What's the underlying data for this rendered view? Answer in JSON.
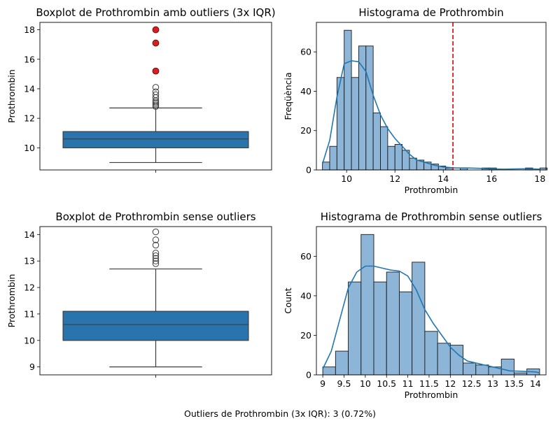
{
  "footer_text": "Outliers de Prothrombin (3x IQR): 3 (0.72%)",
  "colors": {
    "box": "#2a74ad",
    "hist_fill": "#8cb5d8",
    "kde": "#1f77b4",
    "outlier_red": "#d62020",
    "threshold_line": "#e41a1c"
  },
  "chart_data": [
    {
      "type": "boxplot",
      "title": "Boxplot de Prothrombin amb outliers (3x IQR)",
      "ylabel": "Prothrombin",
      "ylim": [
        8.5,
        18.5
      ],
      "yticks": [
        10,
        12,
        14,
        16,
        18
      ],
      "stats": {
        "whisker_low": 9.0,
        "q1": 10.0,
        "median": 10.6,
        "q3": 11.1,
        "whisker_high": 12.7
      },
      "fliers": [
        12.8,
        12.9,
        13.0,
        13.1,
        13.2,
        13.4,
        13.6,
        13.8,
        14.1
      ],
      "extreme_outliers": [
        15.2,
        17.1,
        18.0
      ]
    },
    {
      "type": "histogram",
      "title": "Histograma de Prothrombin",
      "xlabel": "Prothrombin",
      "ylabel": "Freqüència",
      "xlim": [
        8.75,
        18.25
      ],
      "ylim": [
        0,
        75
      ],
      "xticks": [
        10,
        12,
        14,
        16,
        18
      ],
      "yticks": [
        0,
        20,
        40,
        60
      ],
      "bin_start": 9.0,
      "bin_width": 0.3,
      "counts": [
        4,
        12,
        47,
        71,
        47,
        63,
        63,
        29,
        22,
        12,
        13,
        10,
        6,
        5,
        4,
        3,
        2,
        1,
        0,
        1,
        0,
        0,
        1,
        1,
        0,
        0,
        0,
        0,
        1,
        0,
        1
      ],
      "kde": [
        [
          9.0,
          3
        ],
        [
          9.3,
          15
        ],
        [
          9.6,
          37
        ],
        [
          9.9,
          54
        ],
        [
          10.2,
          55.5
        ],
        [
          10.5,
          55
        ],
        [
          10.8,
          50
        ],
        [
          11.1,
          38
        ],
        [
          11.4,
          28
        ],
        [
          11.7,
          21
        ],
        [
          12.0,
          16
        ],
        [
          12.3,
          12
        ],
        [
          12.6,
          8
        ],
        [
          12.9,
          5
        ],
        [
          13.2,
          4
        ],
        [
          13.6,
          2.5
        ],
        [
          14.0,
          1.5
        ],
        [
          14.5,
          1
        ],
        [
          15.0,
          1
        ],
        [
          15.5,
          0.8
        ],
        [
          16.0,
          0.5
        ],
        [
          16.5,
          0.4
        ],
        [
          17.0,
          0.5
        ],
        [
          17.5,
          0.6
        ],
        [
          18.0,
          0.4
        ]
      ],
      "threshold": 14.4
    },
    {
      "type": "boxplot",
      "title": "Boxplot de Prothrombin sense outliers",
      "ylabel": "Prothrombin",
      "ylim": [
        8.7,
        14.3
      ],
      "yticks": [
        9,
        10,
        11,
        12,
        13,
        14
      ],
      "stats": {
        "whisker_low": 9.0,
        "q1": 10.0,
        "median": 10.6,
        "q3": 11.1,
        "whisker_high": 12.7
      },
      "fliers": [
        12.9,
        13.0,
        13.1,
        13.2,
        13.3,
        13.6,
        13.8,
        14.1
      ],
      "extreme_outliers": []
    },
    {
      "type": "histogram",
      "title": "Histograma de Prothrombin sense outliers",
      "xlabel": "Prothrombin",
      "ylabel": "Count",
      "xlim": [
        8.85,
        14.25
      ],
      "ylim": [
        0,
        75
      ],
      "xticks": [
        9,
        9.5,
        10,
        10.5,
        11,
        11.5,
        12,
        12.5,
        13,
        13.5,
        14
      ],
      "yticks": [
        0,
        20,
        40,
        60
      ],
      "bin_start": 9.0,
      "bin_width": 0.3,
      "counts": [
        4,
        12,
        47,
        71,
        47,
        52,
        42,
        57,
        22,
        16,
        15,
        6,
        5,
        4,
        8,
        1,
        3
      ],
      "kde": [
        [
          9.0,
          3
        ],
        [
          9.2,
          12
        ],
        [
          9.4,
          28
        ],
        [
          9.6,
          44
        ],
        [
          9.8,
          52
        ],
        [
          10.0,
          55
        ],
        [
          10.2,
          55
        ],
        [
          10.4,
          54
        ],
        [
          10.6,
          53
        ],
        [
          10.8,
          52.5
        ],
        [
          11.0,
          50
        ],
        [
          11.2,
          43
        ],
        [
          11.4,
          33
        ],
        [
          11.6,
          26
        ],
        [
          11.8,
          20
        ],
        [
          12.0,
          14
        ],
        [
          12.2,
          10
        ],
        [
          12.4,
          7
        ],
        [
          12.6,
          6
        ],
        [
          12.8,
          5
        ],
        [
          13.0,
          4
        ],
        [
          13.2,
          3
        ],
        [
          13.4,
          2
        ],
        [
          13.7,
          1.8
        ],
        [
          14.0,
          1.5
        ],
        [
          14.1,
          1
        ]
      ],
      "threshold": null
    }
  ]
}
